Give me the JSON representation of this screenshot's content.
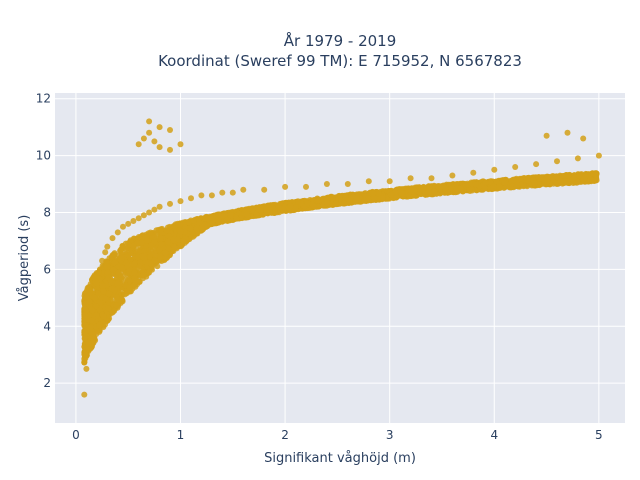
{
  "chart_data": {
    "type": "scatter",
    "title_line1": "År 1979 - 2019",
    "title_line2": "Koordinat (Sweref 99 TM): E 715952, N 6567823",
    "xlabel": "Signifikant våghöjd (m)",
    "ylabel": "Vågperiod (s)",
    "xlim": [
      -0.2,
      5.25
    ],
    "ylim": [
      0.6,
      12.2
    ],
    "xticks": [
      "0",
      "1",
      "2",
      "3",
      "4",
      "5"
    ],
    "yticks": [
      "2",
      "4",
      "6",
      "8",
      "10",
      "12"
    ],
    "grid": true,
    "marker_color": "#D4A017",
    "plot_background": "#E5E8F0",
    "series": [
      {
        "x": [
          0.08,
          0.1,
          0.12,
          0.15,
          0.18,
          0.2,
          0.22,
          0.25,
          0.28,
          0.3,
          0.35,
          0.4,
          0.45,
          0.5,
          0.55,
          0.6,
          0.65,
          0.7,
          0.75,
          0.8,
          0.9,
          1.0,
          1.1,
          1.2,
          1.3,
          1.4,
          1.5,
          1.6,
          1.8,
          2.0,
          2.2,
          2.4,
          2.6,
          2.8,
          3.0,
          3.2,
          3.4,
          3.6,
          3.8,
          4.0,
          4.2,
          4.4,
          4.6,
          4.8,
          5.0,
          0.6,
          0.65,
          0.7,
          0.75,
          0.8,
          0.9,
          1.0,
          0.7,
          0.8,
          0.9,
          4.5,
          4.7,
          4.85
        ],
        "y": [
          1.6,
          2.5,
          3.4,
          4.2,
          5.0,
          5.5,
          5.9,
          6.3,
          6.6,
          6.8,
          7.1,
          7.3,
          7.5,
          7.6,
          7.7,
          7.8,
          7.9,
          8.0,
          8.1,
          8.2,
          8.3,
          8.4,
          8.5,
          8.6,
          8.6,
          8.7,
          8.7,
          8.8,
          8.8,
          8.9,
          8.9,
          9.0,
          9.0,
          9.1,
          9.1,
          9.2,
          9.2,
          9.3,
          9.4,
          9.5,
          9.6,
          9.7,
          9.8,
          9.9,
          10.0,
          10.4,
          10.6,
          10.8,
          10.5,
          10.3,
          10.2,
          10.4,
          11.2,
          11.0,
          10.9,
          10.7,
          10.8,
          10.6
        ]
      }
    ]
  }
}
